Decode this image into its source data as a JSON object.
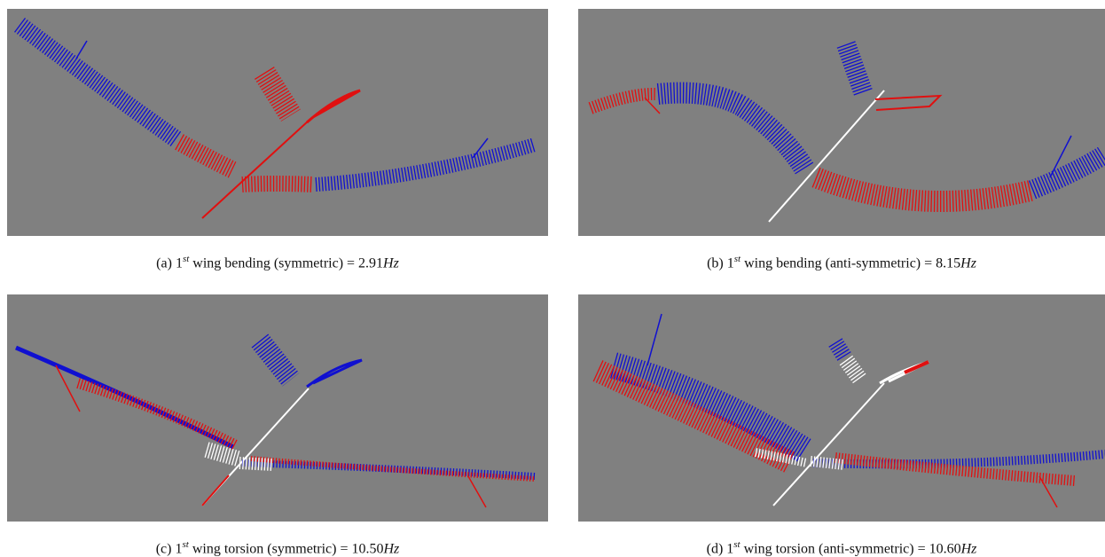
{
  "panels": [
    {
      "label": "(a)",
      "ordinal": "1",
      "suffix": "st",
      "description": "wing bending (symmetric) =",
      "value": "2.91",
      "unit": "Hz"
    },
    {
      "label": "(b)",
      "ordinal": "1",
      "suffix": "st",
      "description": "wing bending (anti-symmetric) =",
      "value": "8.15",
      "unit": "Hz"
    },
    {
      "label": "(c)",
      "ordinal": "1",
      "suffix": "st",
      "description": "wing torsion (symmetric) =",
      "value": "10.50",
      "unit": "Hz"
    },
    {
      "label": "(d)",
      "ordinal": "1",
      "suffix": "st",
      "description": "wing torsion (anti-symmetric) =",
      "value": "10.60",
      "unit": "Hz"
    }
  ]
}
